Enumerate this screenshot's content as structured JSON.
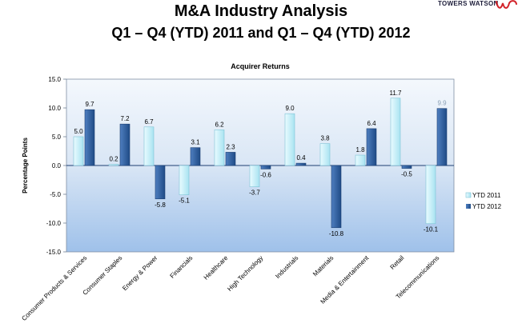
{
  "header": {
    "title": "M&A Industry Analysis",
    "subtitle": "Q1 – Q4 (YTD) 2011 and Q1 – Q4 (YTD) 2012",
    "brand": "TOWERS WATSON"
  },
  "chart_data": {
    "type": "bar",
    "title": "Acquirer Returns",
    "xlabel": "",
    "ylabel": "Percentage Points",
    "ylim": [
      -15,
      15
    ],
    "yticks": [
      -15,
      -10,
      -5,
      0,
      5,
      10,
      15
    ],
    "ytick_labels": [
      "-15.0",
      "-10.0",
      "-5.0",
      "0.0",
      "5.0",
      "10.0",
      "15.0"
    ],
    "legend_position": "right",
    "categories": [
      "Consumer Products & Services",
      "Consumer Staples",
      "Energy & Power",
      "Financials",
      "Healthcare",
      "High Technology",
      "Industrials",
      "Materials",
      "Media & Entertainment",
      "Retail",
      "Telecommunications"
    ],
    "series": [
      {
        "name": "YTD 2011",
        "color": "#c8f0f8",
        "values": [
          5.0,
          0.2,
          6.7,
          -5.1,
          6.2,
          -3.7,
          9.0,
          3.8,
          1.8,
          11.7,
          -10.1
        ],
        "labels": [
          "5.0",
          "0.2",
          "6.7",
          "-5.1",
          "6.2",
          "-3.7",
          "9.0",
          "3.8",
          "1.8",
          "11.7",
          "-10.1"
        ]
      },
      {
        "name": "YTD 2012",
        "color": "#2f5fa0",
        "values": [
          9.7,
          7.2,
          -5.8,
          3.1,
          2.3,
          -0.6,
          0.4,
          -10.8,
          6.4,
          -0.5,
          9.9
        ],
        "labels": [
          "9.7",
          "7.2",
          "-5.8",
          "3.1",
          "2.3",
          "-0.6",
          "0.4",
          "-10.8",
          "6.4",
          "-0.5",
          "9.9"
        ]
      }
    ]
  }
}
